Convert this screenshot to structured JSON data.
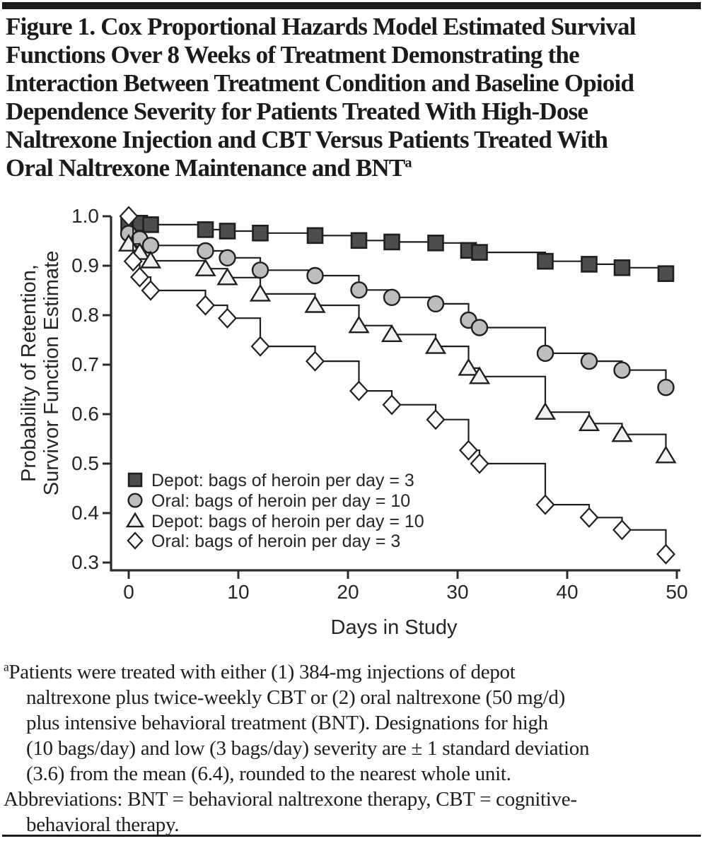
{
  "page": {
    "background": "#ffffff",
    "rule_color": "#1c1c1c",
    "text_color": "#1d1d1d"
  },
  "figure_title": {
    "lines": [
      "Figure 1. Cox Proportional Hazards Model Estimated Survival",
      "Functions Over 8 Weeks of Treatment Demonstrating the",
      "Interaction Between Treatment Condition and Baseline Opioid",
      "Dependence Severity for Patients Treated With High-Dose",
      "Naltrexone Injection and CBT Versus Patients Treated With",
      "Oral Naltrexone Maintenance and BNT"
    ],
    "superscript": "a"
  },
  "chart_data": {
    "type": "line",
    "subtype": "step-survival",
    "title": "",
    "xlabel": "Days in Study",
    "ylabel_lines": [
      "Probability of Retention,",
      "Survivor Function Estimate"
    ],
    "xlim": [
      0,
      50
    ],
    "ylim": [
      0.3,
      1.0
    ],
    "xticks": [
      0,
      10,
      20,
      30,
      40,
      50
    ],
    "yticks": [
      1.0,
      0.9,
      0.8,
      0.7,
      0.6,
      0.5,
      0.4,
      0.3
    ],
    "ytick_labels": [
      "1.0",
      "0.9",
      "0.8",
      "0.7",
      "0.6",
      "0.5",
      "0.4",
      "0.3"
    ],
    "grid": false,
    "legend_position": "lower-left",
    "line_color": "#1f1f1f",
    "marker_stroke": "#1f1f1f",
    "series": [
      {
        "name": "Depot: bags of heroin per day = 3",
        "marker": "square",
        "marker_fill": "#4d4d4d",
        "points": [
          [
            0,
            0.985
          ],
          [
            1,
            0.986
          ],
          [
            2,
            0.983
          ],
          [
            7,
            0.973
          ],
          [
            9,
            0.97
          ],
          [
            12,
            0.966
          ],
          [
            17,
            0.961
          ],
          [
            21,
            0.951
          ],
          [
            24,
            0.948
          ],
          [
            28,
            0.946
          ],
          [
            31,
            0.931
          ],
          [
            32,
            0.927
          ],
          [
            38,
            0.909
          ],
          [
            42,
            0.903
          ],
          [
            45,
            0.896
          ],
          [
            49,
            0.884
          ]
        ]
      },
      {
        "name": "Oral: bags of heroin per day = 10",
        "marker": "circle",
        "marker_fill": "#bdbdbd",
        "points": [
          [
            0,
            0.965
          ],
          [
            1,
            0.954
          ],
          [
            2,
            0.941
          ],
          [
            7,
            0.93
          ],
          [
            9,
            0.916
          ],
          [
            12,
            0.891
          ],
          [
            17,
            0.88
          ],
          [
            21,
            0.851
          ],
          [
            24,
            0.836
          ],
          [
            28,
            0.823
          ],
          [
            31,
            0.79
          ],
          [
            32,
            0.775
          ],
          [
            38,
            0.723
          ],
          [
            42,
            0.707
          ],
          [
            45,
            0.689
          ],
          [
            49,
            0.654
          ]
        ]
      },
      {
        "name": "Depot: bags of heroin per day = 10",
        "marker": "triangle",
        "marker_fill": "#f1f1f1",
        "points": [
          [
            0,
            0.944
          ],
          [
            1,
            0.927
          ],
          [
            2,
            0.91
          ],
          [
            7,
            0.894
          ],
          [
            9,
            0.876
          ],
          [
            12,
            0.843
          ],
          [
            17,
            0.82
          ],
          [
            21,
            0.779
          ],
          [
            24,
            0.761
          ],
          [
            28,
            0.737
          ],
          [
            31,
            0.693
          ],
          [
            32,
            0.676
          ],
          [
            38,
            0.604
          ],
          [
            42,
            0.581
          ],
          [
            45,
            0.559
          ],
          [
            49,
            0.516
          ]
        ]
      },
      {
        "name": "Oral: bags of heroin per day = 3",
        "marker": "diamond",
        "marker_fill": "#ffffff",
        "points": [
          [
            0,
            1.0
          ],
          [
            0.4,
            0.909
          ],
          [
            1,
            0.877
          ],
          [
            2,
            0.85
          ],
          [
            7,
            0.82
          ],
          [
            9,
            0.794
          ],
          [
            12,
            0.737
          ],
          [
            17,
            0.707
          ],
          [
            21,
            0.647
          ],
          [
            24,
            0.619
          ],
          [
            28,
            0.589
          ],
          [
            31,
            0.527
          ],
          [
            32,
            0.5
          ],
          [
            38,
            0.417
          ],
          [
            42,
            0.391
          ],
          [
            45,
            0.366
          ],
          [
            49,
            0.317
          ]
        ]
      }
    ]
  },
  "footnote": {
    "marker": "a",
    "para1_lines": [
      "Patients were treated with either (1) 384-mg injections of depot",
      "naltrexone plus twice-weekly CBT or (2) oral naltrexone (50 mg/d)",
      "plus intensive behavioral treatment (BNT). Designations for high",
      "(10 bags/day) and low (3 bags/day) severity are ± 1 standard deviation",
      "(3.6) from the mean (6.4), rounded to the nearest whole unit."
    ],
    "para2_lines": [
      "Abbreviations: BNT = behavioral naltrexone therapy, CBT = cognitive-",
      "behavioral therapy."
    ]
  }
}
